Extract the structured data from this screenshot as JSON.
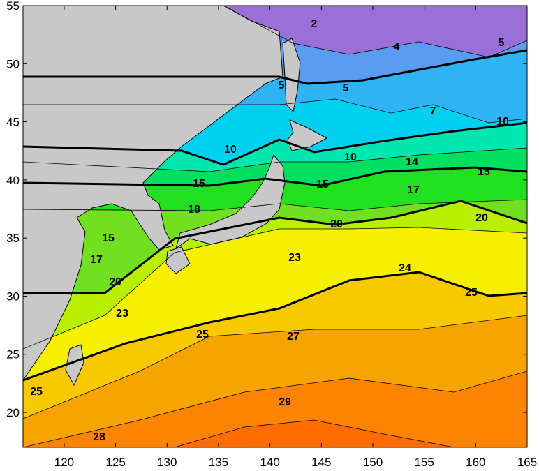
{
  "map": {
    "xlim": [
      116,
      165
    ],
    "ylim": [
      17,
      55
    ],
    "xticks": [
      120,
      125,
      130,
      135,
      140,
      145,
      150,
      155,
      160,
      165
    ],
    "yticks": [
      20,
      25,
      30,
      35,
      40,
      45,
      50,
      55
    ],
    "contour_labels": [
      2,
      4,
      5,
      5,
      5,
      7,
      10,
      10,
      10,
      14,
      15,
      15,
      15,
      17,
      18,
      20,
      20,
      15,
      17,
      23,
      24,
      20,
      25,
      23,
      25,
      27,
      25,
      29,
      28
    ]
  }
}
